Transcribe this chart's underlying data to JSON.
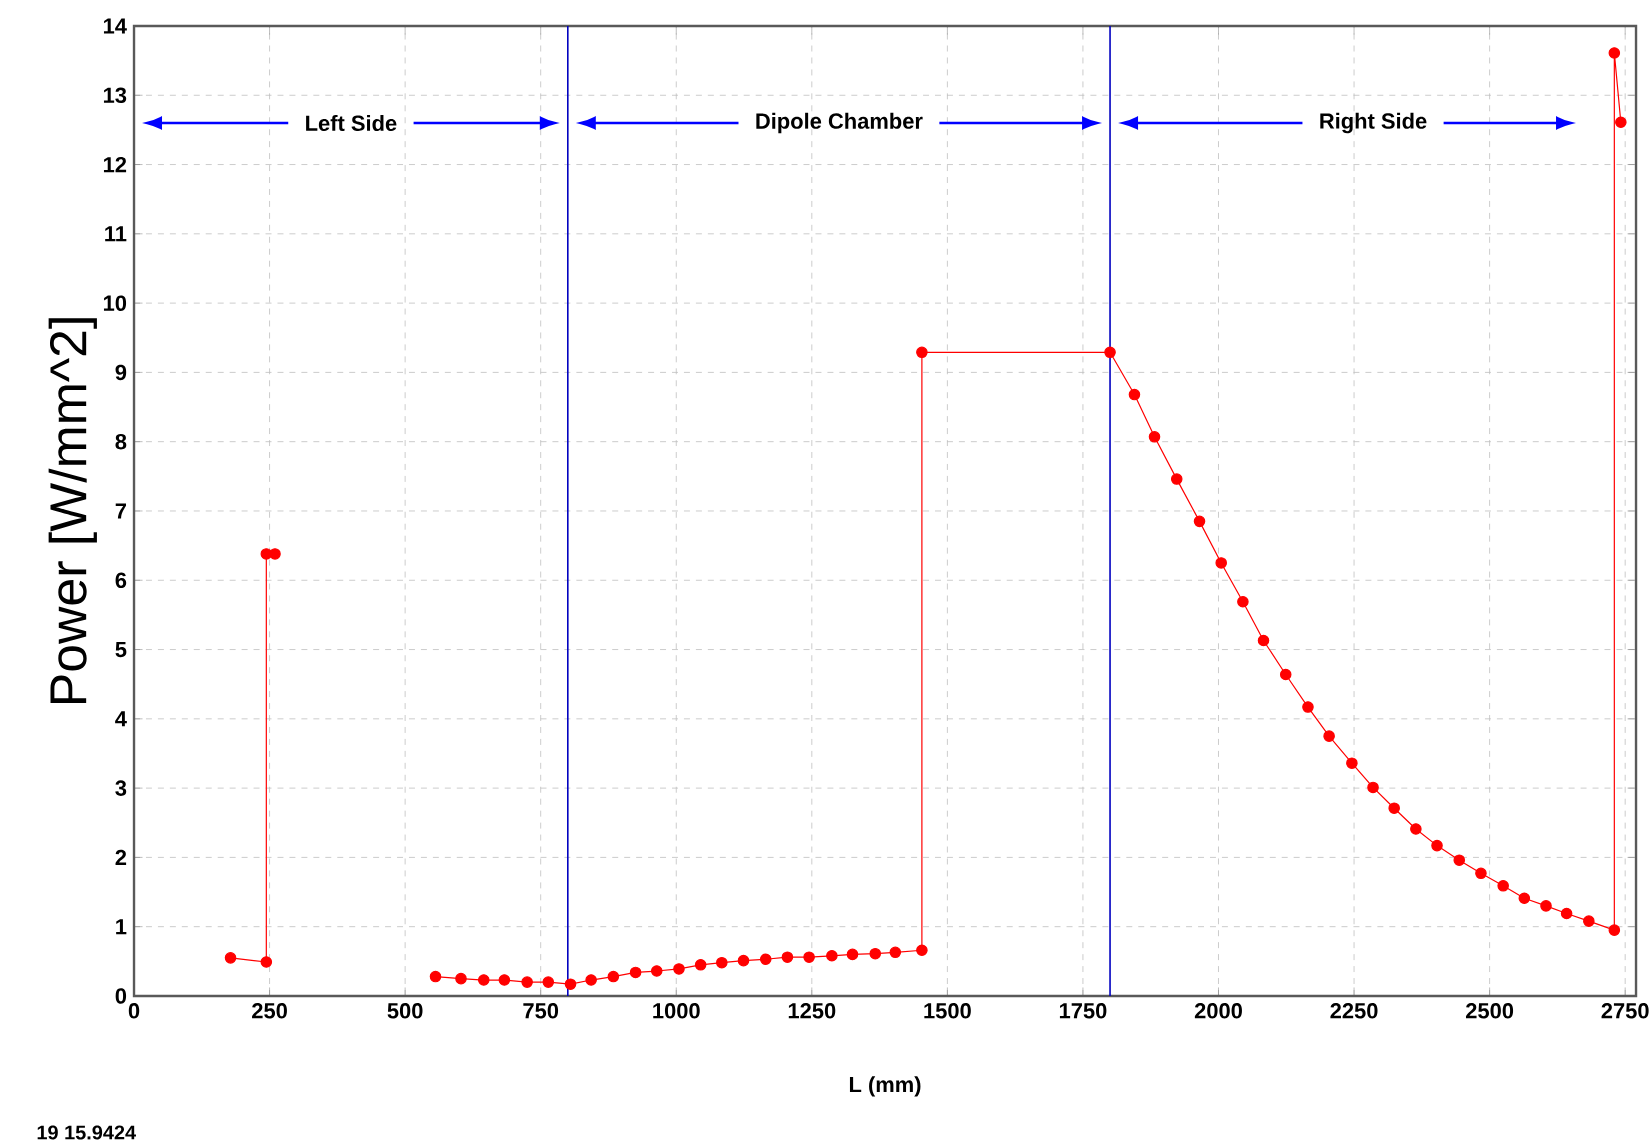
{
  "chart_data": {
    "type": "line",
    "xlabel": "L (mm)",
    "ylabel": "Power [W/mm^2]",
    "xlim": [
      0,
      2770
    ],
    "ylim": [
      0,
      14
    ],
    "xticks": [
      0,
      250,
      500,
      750,
      1000,
      1250,
      1500,
      1750,
      2000,
      2250,
      2500,
      2750
    ],
    "yticks": [
      0,
      1,
      2,
      3,
      4,
      5,
      6,
      7,
      8,
      9,
      10,
      11,
      12,
      13,
      14
    ],
    "grid": true,
    "marker": "circle",
    "line_style": "solid",
    "series": [
      {
        "color": "#ff0000",
        "x": [
          178,
          244,
          244,
          260,
          null,
          556,
          603,
          645,
          683,
          725,
          764,
          805,
          843,
          884,
          925,
          964,
          1005,
          1045,
          1084,
          1124,
          1165,
          1205,
          1245,
          1287,
          1325,
          1367,
          1404,
          1453,
          1453,
          1800,
          1845,
          1882,
          1923,
          1965,
          2005,
          2045,
          2083,
          2124,
          2165,
          2204,
          2246,
          2285,
          2324,
          2364,
          2403,
          2444,
          2484,
          2525,
          2564,
          2604,
          2642,
          2683,
          2730,
          2730,
          2742
        ],
        "values": [
          0.55,
          0.49,
          6.38,
          6.38,
          null,
          0.28,
          0.25,
          0.23,
          0.23,
          0.2,
          0.2,
          0.17,
          0.23,
          0.28,
          0.34,
          0.36,
          0.39,
          0.45,
          0.48,
          0.51,
          0.53,
          0.56,
          0.56,
          0.58,
          0.6,
          0.61,
          0.63,
          0.66,
          9.29,
          9.29,
          8.68,
          8.07,
          7.46,
          6.85,
          6.25,
          5.69,
          5.13,
          4.64,
          4.17,
          3.75,
          3.36,
          3.01,
          2.71,
          2.41,
          2.17,
          1.96,
          1.77,
          1.59,
          1.41,
          1.3,
          1.19,
          1.08,
          0.95,
          13.61,
          12.61
        ]
      }
    ],
    "ref_lines": [
      {
        "axis": "x",
        "value": 800,
        "color": "#0000c0"
      },
      {
        "axis": "x",
        "value": 1800,
        "color": "#0000c0"
      }
    ],
    "annotations": [
      "Left Side",
      "Dipole Chamber",
      "Right Side",
      "19  15.9424"
    ]
  }
}
